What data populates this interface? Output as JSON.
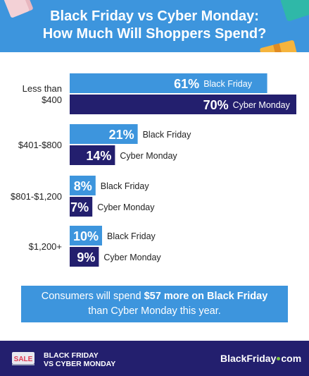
{
  "header": {
    "title_line1": "Black Friday vs Cyber Monday:",
    "title_line2": "How Much Will Shoppers Spend?"
  },
  "colors": {
    "header_bg": "#3d95dd",
    "black_friday": "#3d95dd",
    "cyber_monday": "#231f6e",
    "footer_bg": "#231f6e",
    "accent_green": "#7ac143"
  },
  "chart_data": {
    "type": "bar",
    "orientation": "horizontal",
    "categories": [
      [
        "Less than",
        "$400"
      ],
      [
        "$401-$800"
      ],
      [
        "$801-$1,200"
      ],
      [
        "$1,200+"
      ]
    ],
    "series": [
      {
        "name": "Black Friday",
        "values": [
          61,
          21,
          8,
          10
        ],
        "labels": [
          "61%",
          "21%",
          "8%",
          "10%"
        ],
        "color": "#3d95dd"
      },
      {
        "name": "Cyber Monday",
        "values": [
          70,
          14,
          7,
          9
        ],
        "labels": [
          "70%",
          "14%",
          "7%",
          "9%"
        ],
        "color": "#231f6e"
      }
    ],
    "xlim": [
      0,
      70
    ],
    "grid": false,
    "legend": "inline-labels"
  },
  "callout": {
    "pre": "Consumers will spend ",
    "bold": "$57 more on Black Friday",
    "post": "than Cyber Monday this year."
  },
  "footer": {
    "sale_icon": "sale-tag-icon",
    "sale_text": "SALE",
    "line1": "BLACK FRIDAY",
    "line2": "VS CYBER MONDAY",
    "brand_left": "BlackFriday",
    "brand_right": "com"
  }
}
